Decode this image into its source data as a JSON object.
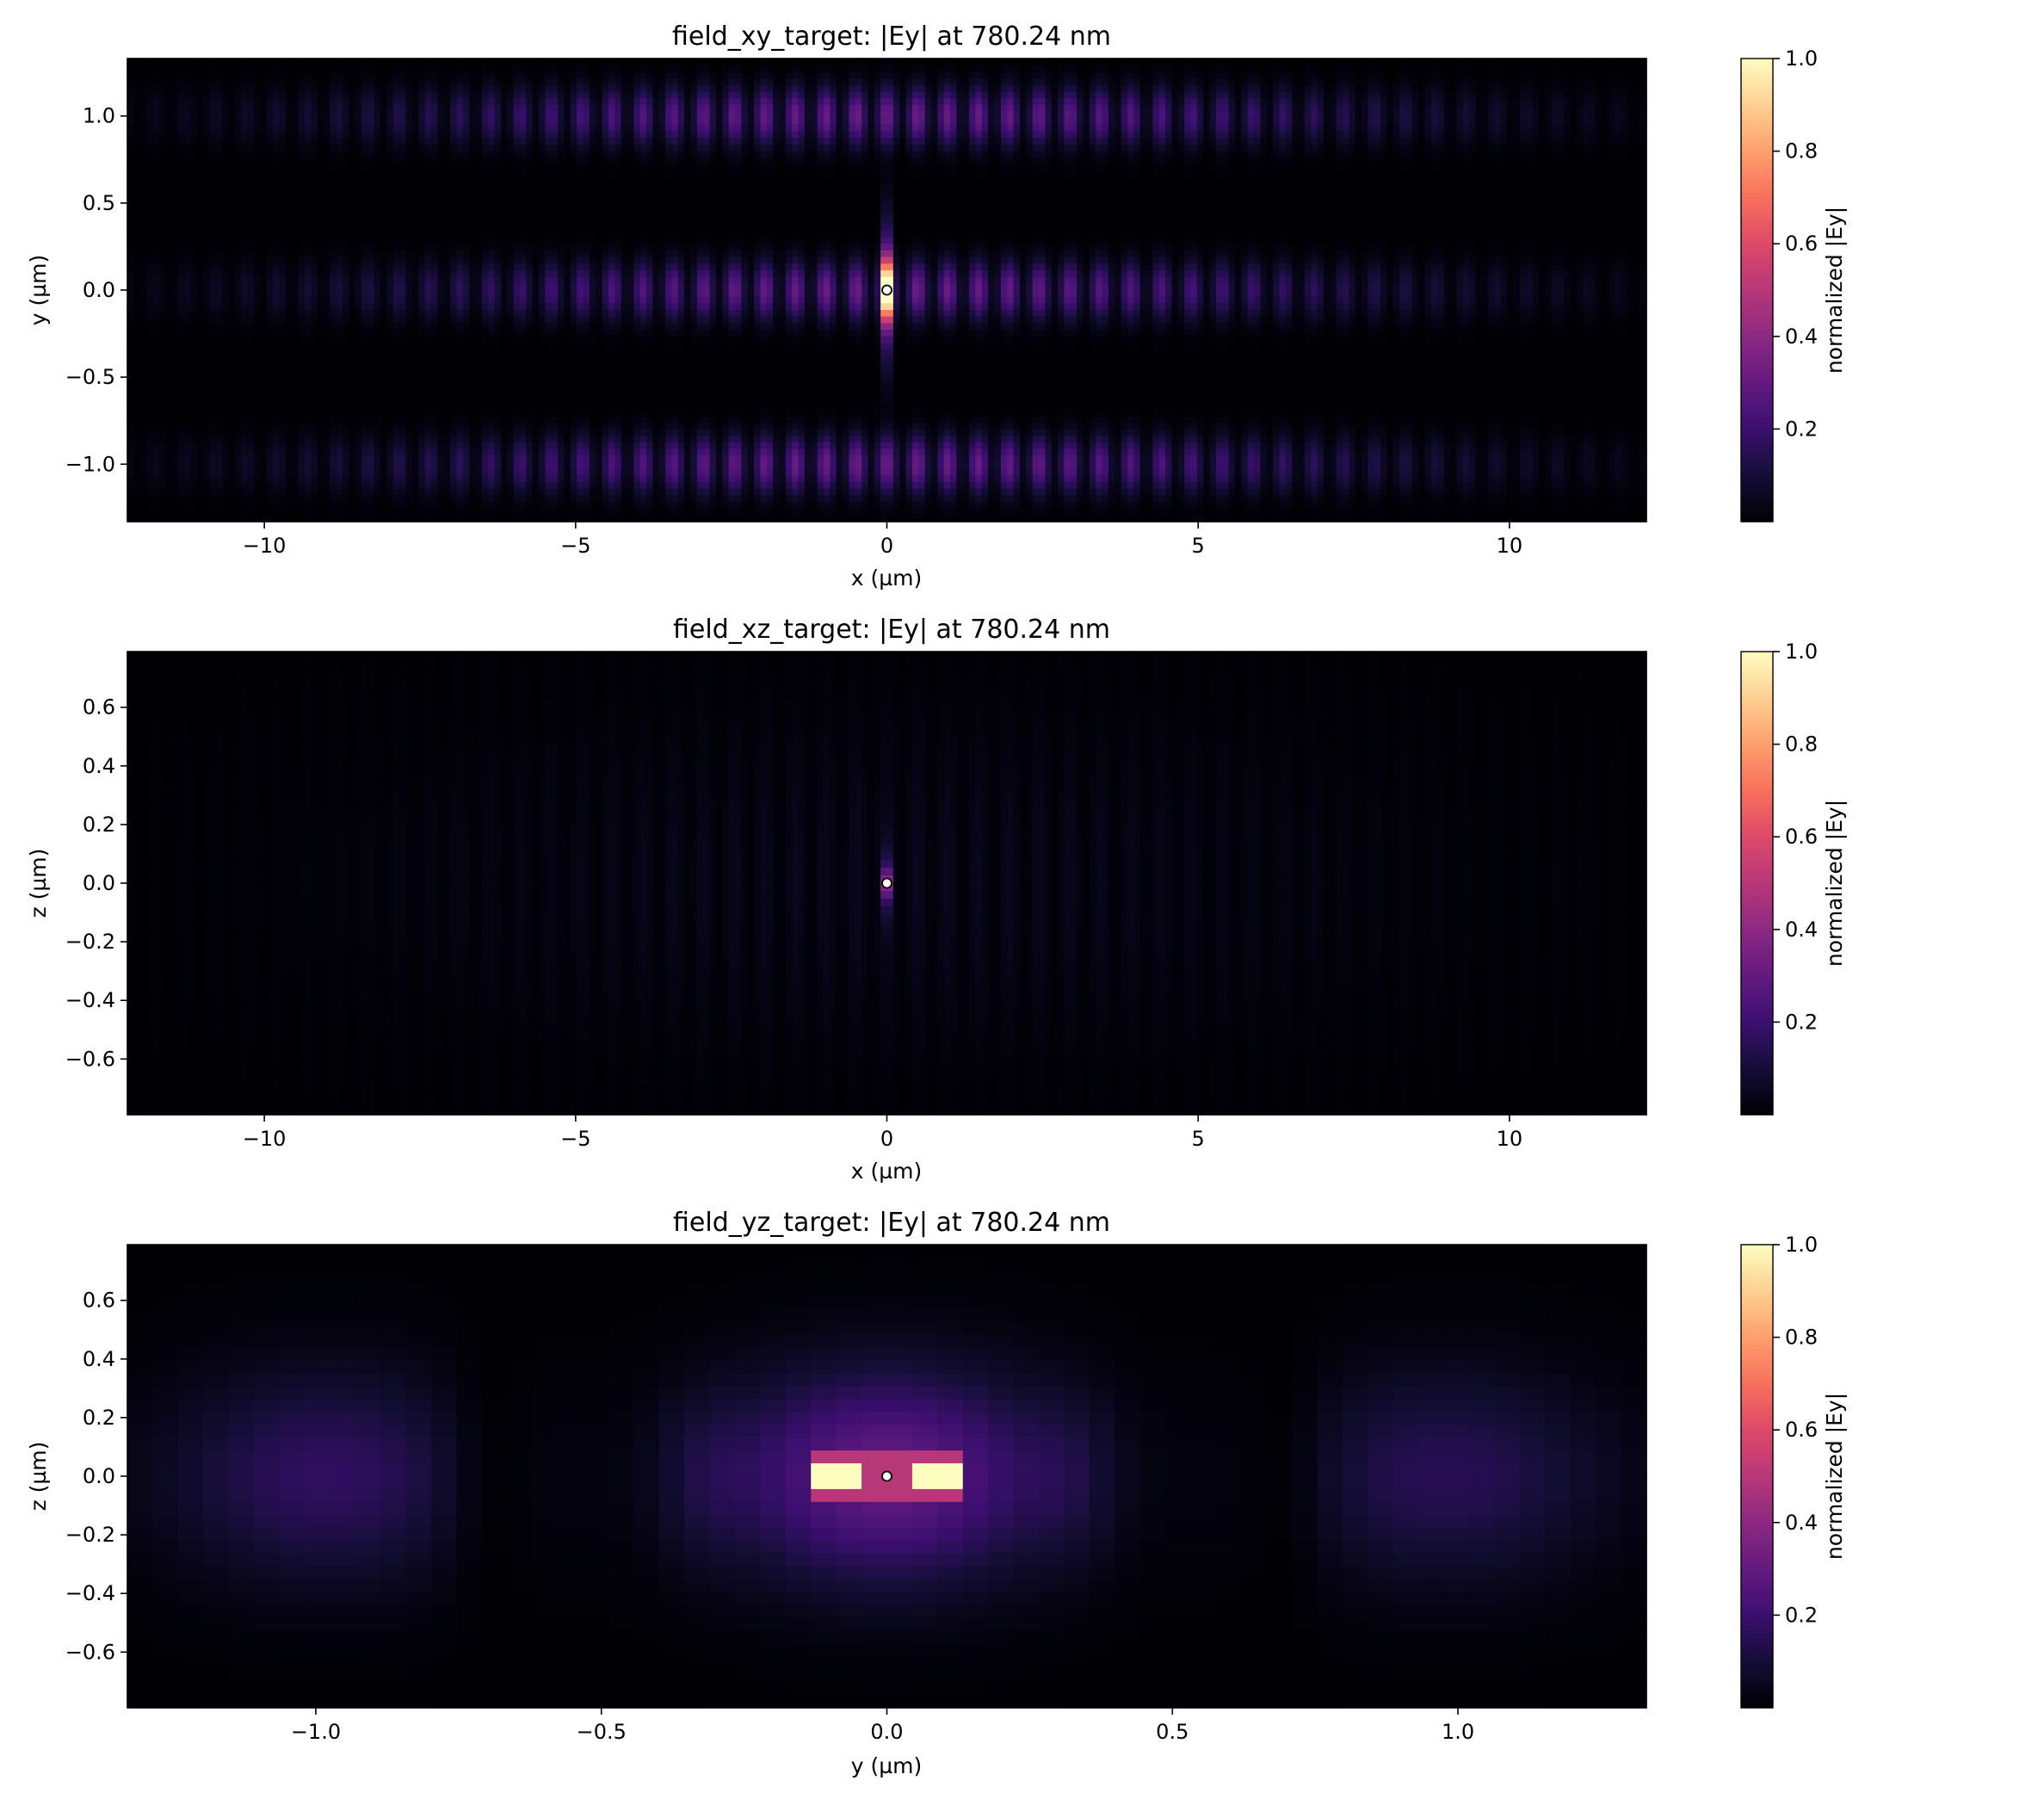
{
  "chart_data": [
    {
      "type": "heatmap",
      "title": "field_xy_target: |Ey| at 780.24 nm",
      "xlabel": "x (µm)",
      "ylabel": "y (µm)",
      "xlim": [
        -12.2,
        12.2
      ],
      "ylim": [
        -1.33,
        1.33
      ],
      "xticks": [
        -10,
        -5,
        0,
        5,
        10
      ],
      "xtick_labels": [
        "−10",
        "−5",
        "0",
        "5",
        "10"
      ],
      "yticks": [
        -1.0,
        -0.5,
        0.0,
        0.5,
        1.0
      ],
      "ytick_labels": [
        "−1.0",
        "−0.5",
        "0.0",
        "0.5",
        "1.0"
      ],
      "colorbar": {
        "label": "normalized |Ey|",
        "range": [
          0.0,
          1.0
        ],
        "ticks": [
          0.2,
          0.4,
          0.6,
          0.8,
          1.0
        ],
        "tick_labels": [
          "0.2",
          "0.4",
          "0.6",
          "0.8",
          "1.0"
        ],
        "colormap": "magma"
      },
      "source_marker": [
        0,
        0
      ],
      "field_model": {
        "description": "standing-wave fringes along x with lobes in y",
        "fringe_period": 0.49,
        "envelope_width": 8.5,
        "lobe_centers": [
          -1.0,
          0.0,
          1.0
        ],
        "lobe_peak": 0.32,
        "hotspot_peak": 1.0
      },
      "grid": false
    },
    {
      "type": "heatmap",
      "title": "field_xz_target: |Ey| at 780.24 nm",
      "xlabel": "x (µm)",
      "ylabel": "z (µm)",
      "xlim": [
        -12.2,
        12.2
      ],
      "ylim": [
        -0.79,
        0.79
      ],
      "xticks": [
        -10,
        -5,
        0,
        5,
        10
      ],
      "xtick_labels": [
        "−10",
        "−5",
        "0",
        "5",
        "10"
      ],
      "yticks": [
        -0.6,
        -0.4,
        -0.2,
        0.0,
        0.2,
        0.4,
        0.6
      ],
      "ytick_labels": [
        "−0.6",
        "−0.4",
        "−0.2",
        "0.0",
        "0.2",
        "0.4",
        "0.6"
      ],
      "colorbar": {
        "label": "normalized |Ey|",
        "range": [
          0.0,
          1.0
        ],
        "ticks": [
          0.2,
          0.4,
          0.6,
          0.8,
          1.0
        ],
        "tick_labels": [
          "0.2",
          "0.4",
          "0.6",
          "0.8",
          "1.0"
        ],
        "colormap": "magma"
      },
      "source_marker": [
        0,
        0
      ],
      "field_model": {
        "description": "field concentrated at origin, faint elsewhere",
        "background_peak": 0.05,
        "hotspot_peak": 0.45
      },
      "grid": false
    },
    {
      "type": "heatmap",
      "title": "field_yz_target: |Ey| at 780.24 nm",
      "xlabel": "y (µm)",
      "ylabel": "z (µm)",
      "xlim": [
        -1.33,
        1.33
      ],
      "ylim": [
        -0.79,
        0.79
      ],
      "xticks": [
        -1.0,
        -0.5,
        0.0,
        0.5,
        1.0
      ],
      "xtick_labels": [
        "−1.0",
        "−0.5",
        "0.0",
        "0.5",
        "1.0"
      ],
      "yticks": [
        -0.6,
        -0.4,
        -0.2,
        0.0,
        0.2,
        0.4,
        0.6
      ],
      "ytick_labels": [
        "−0.6",
        "−0.4",
        "−0.2",
        "0.0",
        "0.2",
        "0.4",
        "0.6"
      ],
      "colorbar": {
        "label": "normalized |Ey|",
        "range": [
          0.0,
          1.0
        ],
        "ticks": [
          0.2,
          0.4,
          0.6,
          0.8,
          1.0
        ],
        "tick_labels": [
          "0.2",
          "0.4",
          "0.6",
          "0.8",
          "1.0"
        ],
        "colormap": "magma"
      },
      "source_marker": [
        0,
        0
      ],
      "field_model": {
        "description": "three lobes along y with central dipole hotspots",
        "lobe_centers": [
          -1.0,
          0.0,
          1.0
        ],
        "lobe_peak": 0.28,
        "hotspot_positions": [
          -0.1,
          0.1
        ],
        "hotspot_peak": 1.0,
        "center_value": 0.55
      },
      "grid": false
    }
  ]
}
